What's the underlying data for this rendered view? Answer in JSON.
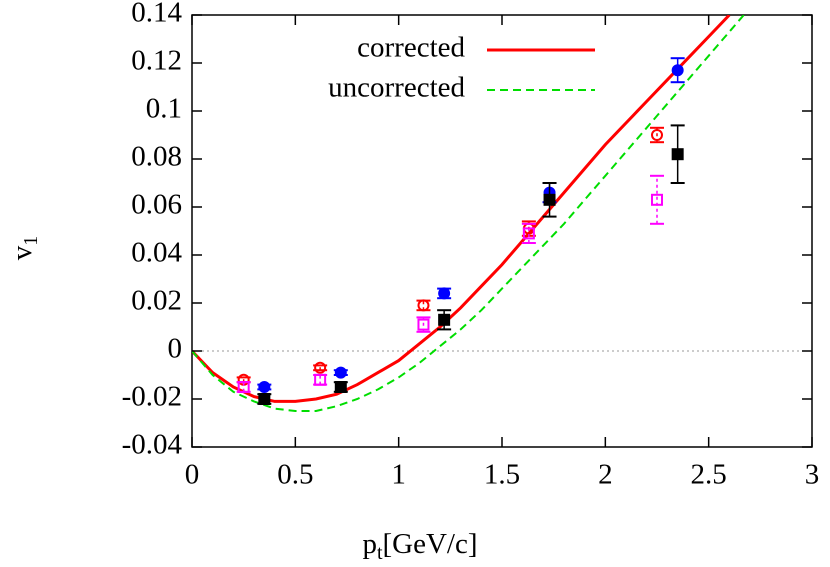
{
  "chart_data": {
    "type": "line",
    "xlabel": {
      "main": "p",
      "sub": "t",
      "rest": "[GeV/c]"
    },
    "ylabel": {
      "main": "v",
      "sub": "1"
    },
    "xlim": [
      0,
      3
    ],
    "xticks": [
      0,
      0.5,
      1,
      1.5,
      2,
      2.5,
      3
    ],
    "ylim": [
      -0.04,
      0.14
    ],
    "yticks": [
      -0.04,
      -0.02,
      0,
      0.02,
      0.04,
      0.06,
      0.08,
      0.1,
      0.12,
      0.14
    ],
    "zero_line": true,
    "series": [
      {
        "name": "corrected",
        "color": "#ff0000",
        "dash": false,
        "x": [
          0,
          0.1,
          0.2,
          0.3,
          0.4,
          0.5,
          0.6,
          0.7,
          0.8,
          0.9,
          1.0,
          1.1,
          1.2,
          1.3,
          1.4,
          1.5,
          1.6,
          1.7,
          1.8,
          1.9,
          2.0,
          2.1,
          2.2,
          2.3,
          2.4,
          2.5,
          2.6
        ],
        "values": [
          0,
          -0.009,
          -0.015,
          -0.019,
          -0.021,
          -0.021,
          -0.02,
          -0.018,
          -0.014,
          -0.009,
          -0.004,
          0.003,
          0.01,
          0.018,
          0.027,
          0.036,
          0.046,
          0.056,
          0.066,
          0.076,
          0.086,
          0.095,
          0.104,
          0.113,
          0.122,
          0.131,
          0.14
        ]
      },
      {
        "name": "uncorrected",
        "color": "#00dd00",
        "dash": true,
        "x": [
          0,
          0.1,
          0.2,
          0.3,
          0.4,
          0.5,
          0.6,
          0.7,
          0.8,
          0.9,
          1.0,
          1.1,
          1.2,
          1.3,
          1.4,
          1.5,
          1.6,
          1.7,
          1.8,
          1.9,
          2.0,
          2.1,
          2.2,
          2.3,
          2.4,
          2.5,
          2.6,
          2.7
        ],
        "values": [
          0,
          -0.01,
          -0.017,
          -0.021,
          -0.024,
          -0.025,
          -0.025,
          -0.023,
          -0.02,
          -0.016,
          -0.011,
          -0.005,
          0.002,
          0.009,
          0.017,
          0.026,
          0.035,
          0.044,
          0.053,
          0.063,
          0.073,
          0.083,
          0.093,
          0.103,
          0.113,
          0.123,
          0.133,
          0.143
        ]
      },
      {
        "type": "scatter",
        "marker": "open-circle",
        "color": "#ff0000",
        "x": [
          0.25,
          0.62,
          1.12,
          1.63,
          2.25
        ],
        "values": [
          -0.012,
          -0.007,
          0.019,
          0.051,
          0.09
        ],
        "errors": [
          0.001,
          0.001,
          0.002,
          0.003,
          0.003
        ]
      },
      {
        "type": "scatter",
        "marker": "filled-circle",
        "color": "#0000ff",
        "x": [
          0.35,
          0.72,
          1.22,
          1.73,
          2.35
        ],
        "values": [
          -0.015,
          -0.009,
          0.024,
          0.066,
          0.117
        ],
        "errors": [
          0.001,
          0.001,
          0.002,
          0.004,
          0.005
        ]
      },
      {
        "type": "scatter",
        "marker": "filled-square",
        "color": "#000000",
        "x": [
          0.35,
          0.72,
          1.22,
          1.73,
          2.35
        ],
        "values": [
          -0.02,
          -0.015,
          0.013,
          0.063,
          0.082
        ],
        "errors": [
          0.002,
          0.002,
          0.004,
          0.007,
          0.012
        ]
      },
      {
        "type": "scatter",
        "marker": "open-square",
        "color": "#ff00ff",
        "x": [
          0.25,
          0.62,
          1.12,
          1.63,
          2.25
        ],
        "values": [
          -0.015,
          -0.012,
          0.011,
          0.049,
          0.063
        ],
        "errors": [
          0.002,
          0.002,
          0.003,
          0.004,
          0.01
        ]
      }
    ]
  }
}
